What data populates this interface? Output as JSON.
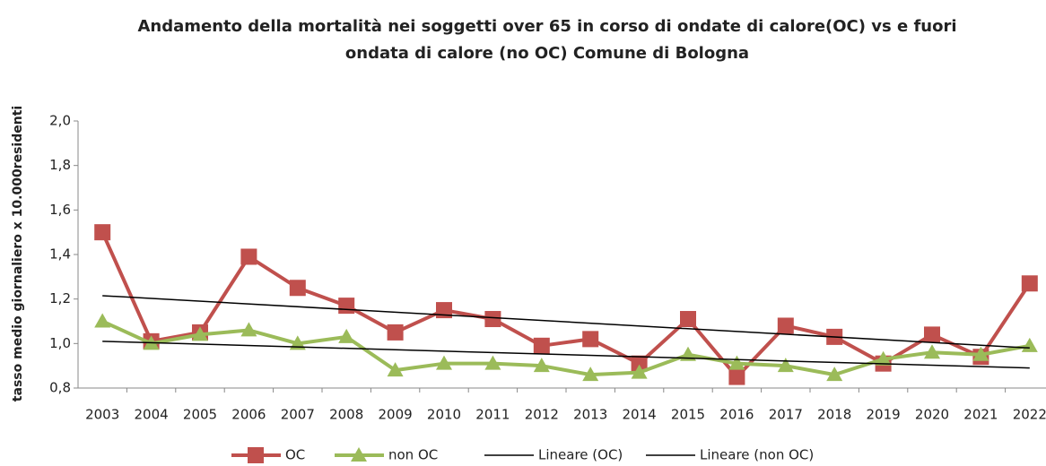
{
  "chart_data": {
    "type": "line",
    "title": "Andamento della mortalità nei soggetti over 65 in corso di ondate di calore(OC) vs e fuori",
    "subtitle": "ondata di calore (no OC) Comune di Bologna",
    "y_label": "tasso medio giornaliero x 10.000residenti",
    "categories": [
      "2003",
      "2004",
      "2005",
      "2006",
      "2007",
      "2008",
      "2009",
      "2010",
      "2011",
      "2012",
      "2013",
      "2014",
      "2015",
      "2016",
      "2017",
      "2018",
      "2019",
      "2020",
      "2021",
      "2022"
    ],
    "series": [
      {
        "name": "OC",
        "color": "#c0504d",
        "marker": "square",
        "width": 4,
        "values": [
          1.5,
          1.01,
          1.05,
          1.39,
          1.25,
          1.17,
          1.05,
          1.15,
          1.11,
          0.99,
          1.02,
          0.91,
          1.11,
          0.85,
          1.08,
          1.03,
          0.91,
          1.04,
          0.94,
          1.27
        ]
      },
      {
        "name": "non OC",
        "color": "#9bbb59",
        "marker": "triangle",
        "width": 4,
        "values": [
          1.1,
          1.0,
          1.04,
          1.06,
          1.0,
          1.03,
          0.88,
          0.91,
          0.91,
          0.9,
          0.86,
          0.87,
          0.95,
          0.91,
          0.9,
          0.86,
          0.93,
          0.96,
          0.95,
          0.99
        ]
      },
      {
        "name": "Lineare (OC)",
        "color": "#000000",
        "marker": "none",
        "width": 1.5,
        "values": [
          1.215,
          1.203,
          1.19,
          1.178,
          1.166,
          1.153,
          1.141,
          1.128,
          1.116,
          1.104,
          1.091,
          1.079,
          1.067,
          1.054,
          1.042,
          1.03,
          1.017,
          1.005,
          0.992,
          0.98
        ]
      },
      {
        "name": "Lineare (non OC)",
        "color": "#000000",
        "marker": "none",
        "width": 1.5,
        "values": [
          1.01,
          1.004,
          0.997,
          0.991,
          0.985,
          0.978,
          0.972,
          0.966,
          0.959,
          0.953,
          0.947,
          0.941,
          0.934,
          0.928,
          0.922,
          0.916,
          0.909,
          0.903,
          0.897,
          0.89
        ]
      }
    ],
    "ylim": [
      0.8,
      2.0
    ],
    "yticks": [
      {
        "value": 0.8,
        "label": "0,8"
      },
      {
        "value": 1.0,
        "label": "1,0"
      },
      {
        "value": 1.2,
        "label": "1,2"
      },
      {
        "value": 1.4,
        "label": "1,4"
      },
      {
        "value": 1.6,
        "label": "1,6"
      },
      {
        "value": 1.8,
        "label": "1,8"
      },
      {
        "value": 2.0,
        "label": "2,0"
      }
    ],
    "grid": false,
    "legend": "bottom"
  }
}
